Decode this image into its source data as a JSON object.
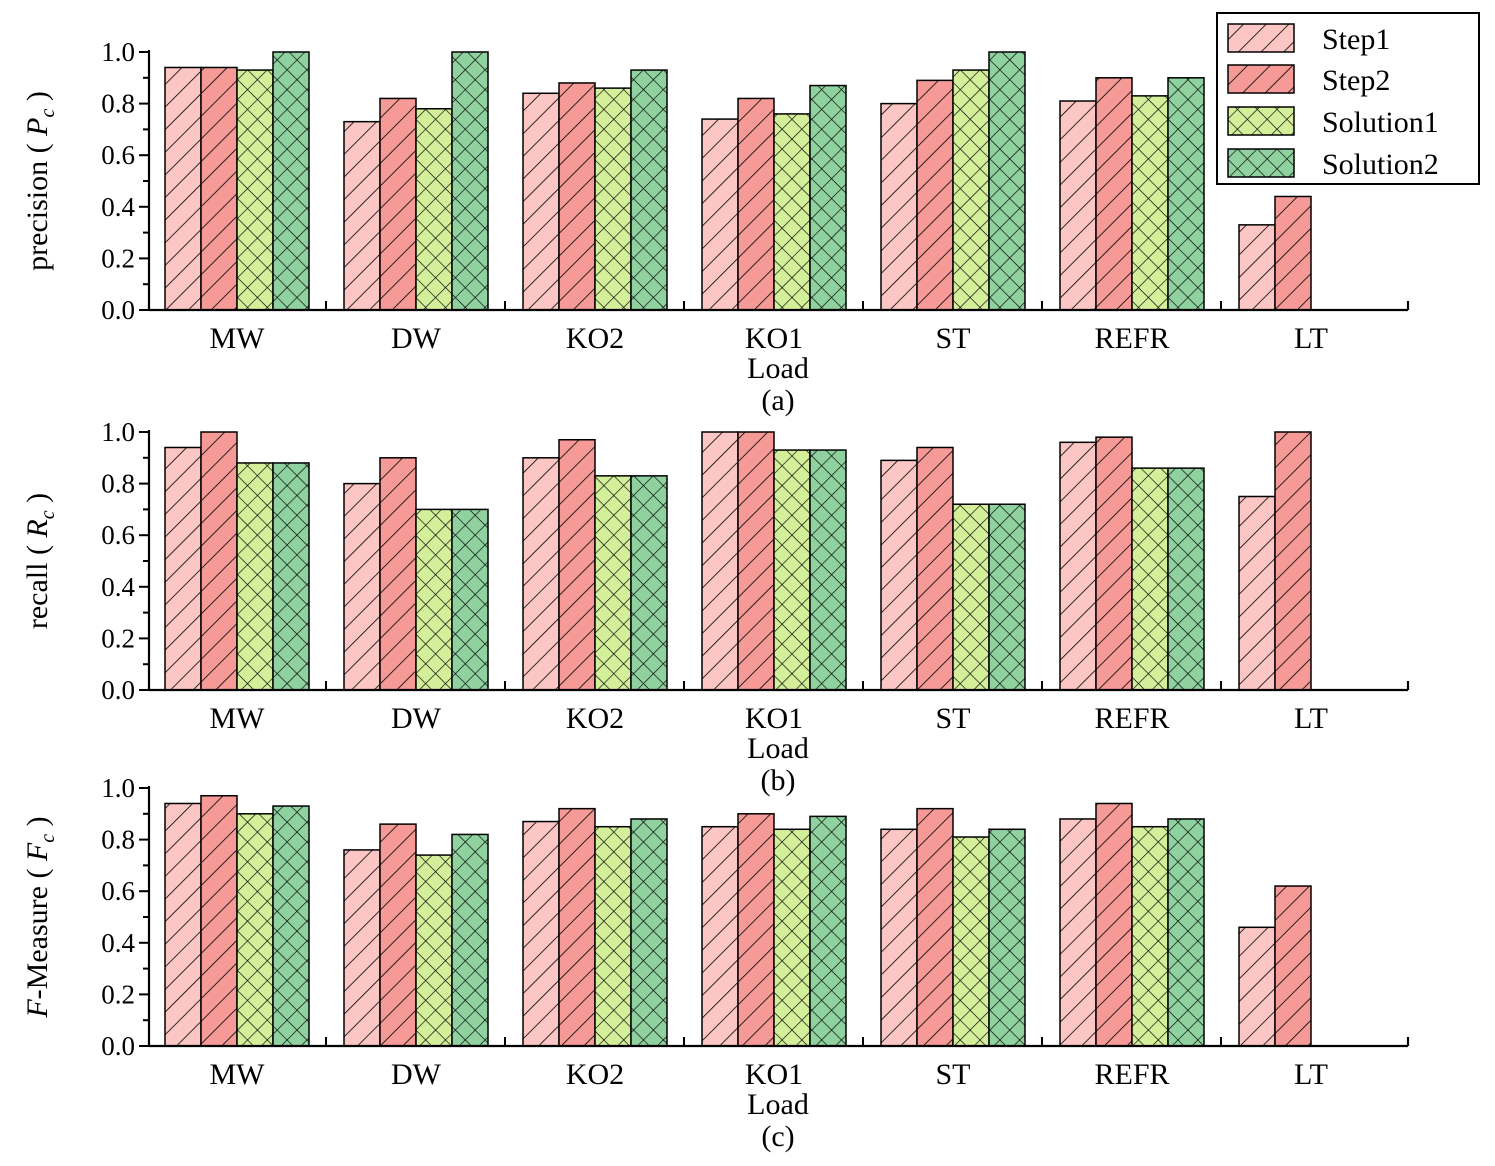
{
  "chart_data": [
    {
      "type": "bar",
      "panel_label": "(a)",
      "ylabel": "precision ( P_c )",
      "ylabel_parts": {
        "pre": "precision ( ",
        "var": "P",
        "sub": "c",
        "post": " )"
      },
      "xlabel": "Load",
      "ylim": [
        0,
        1.0
      ],
      "yticks": [
        "0.0",
        "0.2",
        "0.4",
        "0.6",
        "0.8",
        "1.0"
      ],
      "categories": [
        "MW",
        "DW",
        "KO2",
        "KO1",
        "ST",
        "REFR",
        "LT"
      ],
      "series": [
        {
          "name": "Step1",
          "values": [
            0.94,
            0.73,
            0.84,
            0.74,
            0.8,
            0.81,
            0.33
          ]
        },
        {
          "name": "Step2",
          "values": [
            0.94,
            0.82,
            0.88,
            0.82,
            0.89,
            0.9,
            0.44
          ]
        },
        {
          "name": "Solution1",
          "values": [
            0.93,
            0.78,
            0.86,
            0.76,
            0.93,
            0.83,
            0
          ]
        },
        {
          "name": "Solution2",
          "values": [
            1.0,
            1.0,
            0.93,
            0.87,
            1.0,
            0.9,
            0
          ]
        }
      ],
      "legend": "top-right"
    },
    {
      "type": "bar",
      "panel_label": "(b)",
      "ylabel": "recall ( R_c )",
      "ylabel_parts": {
        "pre": "recall ( ",
        "var": "R",
        "sub": "c",
        "post": " )"
      },
      "xlabel": "Load",
      "ylim": [
        0,
        1.0
      ],
      "yticks": [
        "0.0",
        "0.2",
        "0.4",
        "0.6",
        "0.8",
        "1.0"
      ],
      "categories": [
        "MW",
        "DW",
        "KO2",
        "KO1",
        "ST",
        "REFR",
        "LT"
      ],
      "series": [
        {
          "name": "Step1",
          "values": [
            0.94,
            0.8,
            0.9,
            1.0,
            0.89,
            0.96,
            0.75
          ]
        },
        {
          "name": "Step2",
          "values": [
            1.0,
            0.9,
            0.97,
            1.0,
            0.94,
            0.98,
            1.0
          ]
        },
        {
          "name": "Solution1",
          "values": [
            0.88,
            0.7,
            0.83,
            0.93,
            0.72,
            0.86,
            0
          ]
        },
        {
          "name": "Solution2",
          "values": [
            0.88,
            0.7,
            0.83,
            0.93,
            0.72,
            0.86,
            0
          ]
        }
      ]
    },
    {
      "type": "bar",
      "panel_label": "(c)",
      "ylabel": "F-Measure ( F_c )",
      "ylabel_parts": {
        "pre_italic": "F",
        "pre": "-Measure ( ",
        "var": "F",
        "sub": "c",
        "post": " )"
      },
      "xlabel": "Load",
      "ylim": [
        0,
        1.0
      ],
      "yticks": [
        "0.0",
        "0.2",
        "0.4",
        "0.6",
        "0.8",
        "1.0"
      ],
      "categories": [
        "MW",
        "DW",
        "KO2",
        "KO1",
        "ST",
        "REFR",
        "LT"
      ],
      "series": [
        {
          "name": "Step1",
          "values": [
            0.94,
            0.76,
            0.87,
            0.85,
            0.84,
            0.88,
            0.46
          ]
        },
        {
          "name": "Step2",
          "values": [
            0.97,
            0.86,
            0.92,
            0.9,
            0.92,
            0.94,
            0.62
          ]
        },
        {
          "name": "Solution1",
          "values": [
            0.9,
            0.74,
            0.85,
            0.84,
            0.81,
            0.85,
            0
          ]
        },
        {
          "name": "Solution2",
          "values": [
            0.93,
            0.82,
            0.88,
            0.89,
            0.84,
            0.88,
            0
          ]
        }
      ]
    }
  ],
  "legend": {
    "entries": [
      "Step1",
      "Step2",
      "Solution1",
      "Solution2"
    ]
  },
  "colors": {
    "Step1": "#fbc6c3",
    "Step2": "#f59a96",
    "Solution1": "#d4ef9a",
    "Solution2": "#8fd19f"
  },
  "patterns": {
    "Step1": "diagonal",
    "Step2": "diagonal",
    "Solution1": "crosshatch",
    "Solution2": "crosshatch"
  }
}
